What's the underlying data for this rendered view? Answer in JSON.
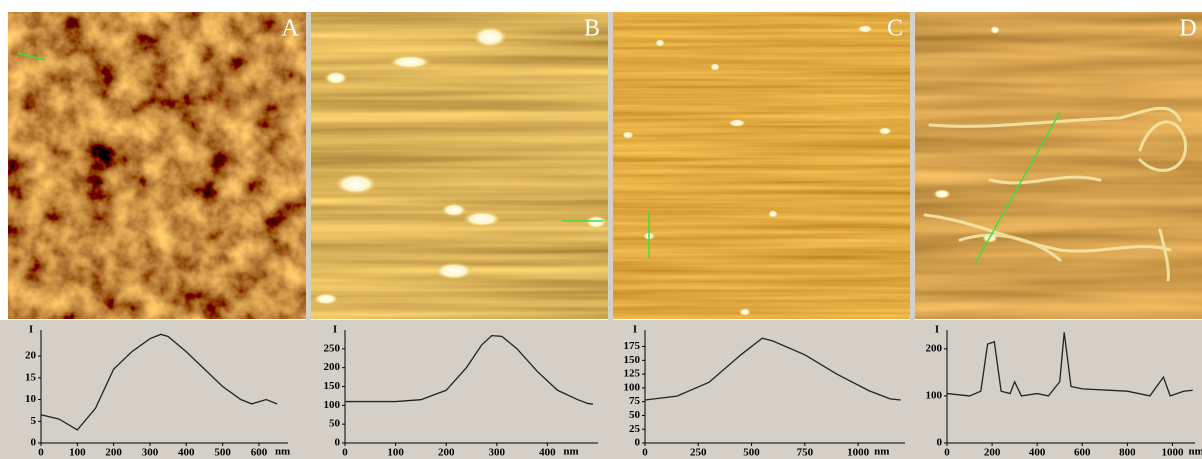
{
  "chart_data": [
    {
      "type": "line",
      "label": "A",
      "x_label": "nm",
      "y_label": "I",
      "x": [
        0,
        50,
        100,
        150,
        200,
        250,
        300,
        330,
        350,
        400,
        450,
        500,
        550,
        580,
        600,
        620,
        650
      ],
      "values": [
        6.5,
        5.5,
        3,
        8,
        17,
        21,
        24,
        25,
        24.5,
        21,
        17,
        13,
        10,
        9,
        9.5,
        10,
        9
      ],
      "xlim": [
        0,
        680
      ],
      "ylim": [
        0,
        26
      ],
      "xticks": [
        0,
        100,
        200,
        300,
        400,
        500,
        600
      ],
      "yticks": [
        0,
        5,
        10,
        15,
        20
      ],
      "color": "#222222"
    },
    {
      "type": "line",
      "label": "B",
      "x_label": "nm",
      "y_label": "I",
      "x": [
        0,
        100,
        150,
        200,
        240,
        270,
        290,
        310,
        340,
        380,
        420,
        460,
        480,
        490
      ],
      "values": [
        110,
        110,
        115,
        140,
        200,
        260,
        285,
        283,
        250,
        190,
        140,
        115,
        105,
        103
      ],
      "xlim": [
        0,
        500
      ],
      "ylim": [
        0,
        300
      ],
      "xticks": [
        0,
        100,
        200,
        300,
        400
      ],
      "yticks": [
        0,
        50,
        100,
        150,
        200,
        250
      ],
      "color": "#222222"
    },
    {
      "type": "line",
      "label": "C",
      "x_label": "nm",
      "y_label": "I",
      "x": [
        0,
        150,
        300,
        450,
        550,
        600,
        750,
        900,
        1050,
        1150,
        1200
      ],
      "values": [
        78,
        85,
        110,
        160,
        190,
        185,
        160,
        125,
        95,
        80,
        78
      ],
      "xlim": [
        0,
        1220
      ],
      "ylim": [
        0,
        205
      ],
      "xticks": [
        0,
        250,
        500,
        750,
        1000
      ],
      "yticks": [
        0,
        25,
        50,
        75,
        100,
        125,
        150,
        175
      ],
      "color": "#222222"
    },
    {
      "type": "line",
      "label": "D",
      "x_label": "nm",
      "y_label": "I",
      "x": [
        0,
        100,
        150,
        180,
        210,
        240,
        280,
        300,
        330,
        400,
        450,
        500,
        520,
        550,
        600,
        800,
        900,
        960,
        990,
        1050,
        1090
      ],
      "values": [
        105,
        100,
        110,
        210,
        215,
        110,
        105,
        130,
        100,
        105,
        100,
        130,
        235,
        120,
        115,
        110,
        100,
        140,
        100,
        110,
        112
      ],
      "xlim": [
        0,
        1100
      ],
      "ylim": [
        0,
        240
      ],
      "xticks": [
        0,
        200,
        400,
        600,
        800,
        1000
      ],
      "yticks": [
        0,
        100,
        200
      ],
      "color": "#222222"
    }
  ]
}
